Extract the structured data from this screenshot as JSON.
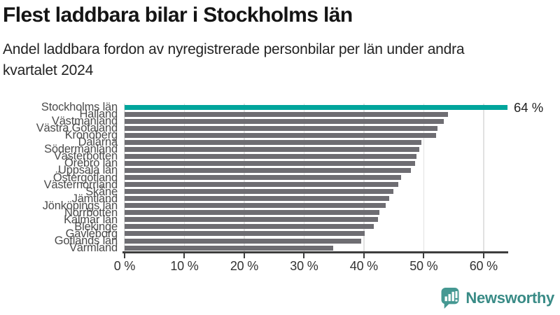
{
  "header": {
    "title": "Flest laddbara bilar i Stockholms län",
    "subtitle_line1": "Andel laddbara fordon av nyregistrerade personbilar per län under andra",
    "subtitle_line2": "kvartalet 2024"
  },
  "chart_data": {
    "type": "bar",
    "orientation": "horizontal",
    "title": "Flest laddbara bilar i Stockholms län",
    "subtitle": "Andel laddbara fordon av nyregistrerade personbilar per län under andra kvartalet 2024",
    "categories": [
      "Stockholms län",
      "Halland",
      "Västmanland",
      "Västra Götaland",
      "Kronoberg",
      "Dalarna",
      "Södermanland",
      "Västerbotten",
      "Örebro län",
      "Uppsala län",
      "Östergötland",
      "Västernorrland",
      "Skåne",
      "Jämtland",
      "Jönköpings län",
      "Norrbotten",
      "Kalmar län",
      "Blekinge",
      "Gävleborg",
      "Gotlands län",
      "Värmland"
    ],
    "values": [
      64,
      54,
      53.4,
      52.3,
      52.1,
      49.6,
      49.3,
      48.8,
      48.5,
      47.8,
      46.2,
      45.8,
      44.9,
      44.2,
      43.7,
      42.6,
      42.3,
      41.6,
      40.1,
      39.5,
      34.9
    ],
    "unit": "%",
    "xlim": [
      0,
      64
    ],
    "x_tick_values": [
      0,
      10,
      20,
      30,
      40,
      50,
      60
    ],
    "x_tick_labels": [
      "0 %",
      "10 %",
      "20 %",
      "30 %",
      "40 %",
      "50 %",
      "60 %"
    ],
    "grid": true,
    "legend": false,
    "highlight_index": 0,
    "highlight_color": "#00A59C",
    "bar_color": "#6E6D72",
    "annotations": [
      {
        "target": "Stockholms län",
        "text": "64 %"
      }
    ]
  },
  "footer": {
    "brand": "Newsworthy",
    "brand_color": "#398B86",
    "icon": "newsworthy-bar-chart-bubble-icon"
  }
}
